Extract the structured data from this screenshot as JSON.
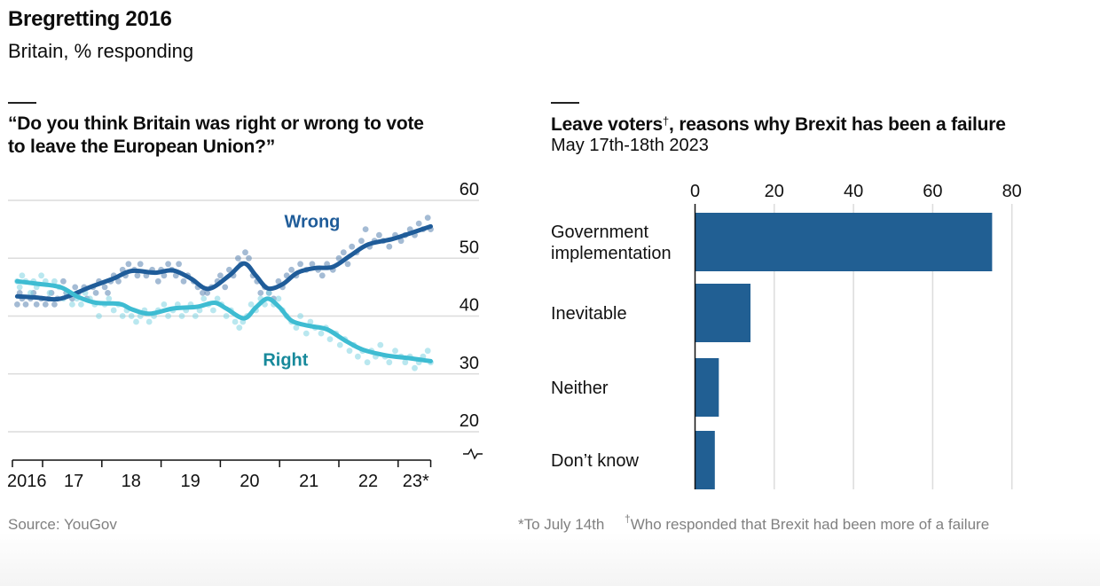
{
  "header": {
    "title": "Bregretting 2016",
    "subtitle": "Britain, % responding"
  },
  "colors": {
    "wrong_line": "#1f5c99",
    "wrong_dots": "#5a83b0",
    "wrong_label": "#1f5c99",
    "right_line": "#3ebcd2",
    "right_dots": "#7fd3e2",
    "right_label": "#17899b",
    "bar": "#215f93",
    "grid": "#dcdcdc",
    "axis": "#111111",
    "footnote": "#808080"
  },
  "footer": {
    "source": "Source: YouGov",
    "note_asterisk": "*To July 14th",
    "note_dagger_mark": "†",
    "note_dagger": "Who responded that Brexit had been more of a failure"
  },
  "chart_data": [
    {
      "type": "line",
      "title": "“Do you think Britain was right or wrong to vote to leave the European Union?”",
      "xlabel": "",
      "ylabel": "% responding",
      "x_ticks": [
        2016.5,
        2017,
        2018,
        2019,
        2020,
        2021,
        2022,
        2023,
        2023.55
      ],
      "x_tick_labels": [
        {
          "x": 2016.5,
          "label": "2016"
        },
        {
          "x": 2017,
          "label": "17"
        },
        {
          "x": 2018,
          "label": "18"
        },
        {
          "x": 2019,
          "label": "19"
        },
        {
          "x": 2020,
          "label": "20"
        },
        {
          "x": 2021,
          "label": "21"
        },
        {
          "x": 2022,
          "label": "22"
        },
        {
          "x": 2023,
          "label": "23*"
        }
      ],
      "xlim": [
        2016.5,
        2023.55
      ],
      "ylim": [
        20,
        60
      ],
      "y_ticks": [
        20,
        30,
        40,
        50,
        60
      ],
      "y_axis_side": "right",
      "y_axis_break": true,
      "grid": true,
      "series": [
        {
          "name": "Wrong",
          "label_position": {
            "x": 2021.55,
            "y": 55.3
          },
          "trend": [
            [
              2016.58,
              43.4
            ],
            [
              2016.9,
              43.2
            ],
            [
              2017.3,
              43.0
            ],
            [
              2017.8,
              45.0
            ],
            [
              2018.2,
              46.5
            ],
            [
              2018.5,
              47.8
            ],
            [
              2018.9,
              47.5
            ],
            [
              2019.2,
              47.9
            ],
            [
              2019.5,
              46.5
            ],
            [
              2019.8,
              44.7
            ],
            [
              2020.15,
              47.0
            ],
            [
              2020.4,
              49.1
            ],
            [
              2020.6,
              47.0
            ],
            [
              2020.8,
              44.8
            ],
            [
              2021.05,
              45.5
            ],
            [
              2021.3,
              47.5
            ],
            [
              2021.6,
              48.3
            ],
            [
              2021.9,
              48.5
            ],
            [
              2022.2,
              50.5
            ],
            [
              2022.5,
              52.4
            ],
            [
              2022.9,
              53.3
            ],
            [
              2023.2,
              54.3
            ],
            [
              2023.55,
              55.5
            ]
          ],
          "points": [
            [
              2016.58,
              42
            ],
            [
              2016.62,
              44
            ],
            [
              2016.66,
              43
            ],
            [
              2016.72,
              42
            ],
            [
              2016.8,
              43
            ],
            [
              2016.85,
              44
            ],
            [
              2016.9,
              42
            ],
            [
              2016.98,
              43
            ],
            [
              2017.05,
              42
            ],
            [
              2017.1,
              43
            ],
            [
              2017.15,
              44
            ],
            [
              2017.2,
              42
            ],
            [
              2017.25,
              43
            ],
            [
              2017.35,
              46
            ],
            [
              2017.4,
              44
            ],
            [
              2017.5,
              43
            ],
            [
              2017.55,
              45
            ],
            [
              2017.6,
              44
            ],
            [
              2017.7,
              45
            ],
            [
              2017.75,
              43
            ],
            [
              2017.85,
              45
            ],
            [
              2017.9,
              44
            ],
            [
              2017.95,
              46
            ],
            [
              2018.05,
              45
            ],
            [
              2018.1,
              44
            ],
            [
              2018.15,
              46
            ],
            [
              2018.2,
              47
            ],
            [
              2018.28,
              46
            ],
            [
              2018.35,
              48
            ],
            [
              2018.4,
              47
            ],
            [
              2018.45,
              49
            ],
            [
              2018.55,
              48
            ],
            [
              2018.6,
              47
            ],
            [
              2018.65,
              49
            ],
            [
              2018.75,
              47
            ],
            [
              2018.85,
              48
            ],
            [
              2018.95,
              46
            ],
            [
              2019.0,
              48
            ],
            [
              2019.05,
              47
            ],
            [
              2019.12,
              49
            ],
            [
              2019.18,
              48
            ],
            [
              2019.25,
              47
            ],
            [
              2019.3,
              49
            ],
            [
              2019.38,
              46
            ],
            [
              2019.45,
              47
            ],
            [
              2019.55,
              46
            ],
            [
              2019.62,
              45
            ],
            [
              2019.7,
              44
            ],
            [
              2019.78,
              44
            ],
            [
              2019.85,
              45
            ],
            [
              2019.95,
              46
            ],
            [
              2020.0,
              47
            ],
            [
              2020.08,
              45
            ],
            [
              2020.15,
              48
            ],
            [
              2020.22,
              47
            ],
            [
              2020.3,
              50
            ],
            [
              2020.35,
              49
            ],
            [
              2020.42,
              51
            ],
            [
              2020.48,
              50
            ],
            [
              2020.55,
              47
            ],
            [
              2020.62,
              46
            ],
            [
              2020.68,
              44
            ],
            [
              2020.75,
              45
            ],
            [
              2020.82,
              44
            ],
            [
              2020.9,
              43
            ],
            [
              2020.98,
              46
            ],
            [
              2021.05,
              45
            ],
            [
              2021.12,
              47
            ],
            [
              2021.2,
              48
            ],
            [
              2021.28,
              47
            ],
            [
              2021.35,
              49
            ],
            [
              2021.45,
              48
            ],
            [
              2021.55,
              49
            ],
            [
              2021.65,
              48
            ],
            [
              2021.72,
              47
            ],
            [
              2021.8,
              49
            ],
            [
              2021.9,
              48
            ],
            [
              2022.0,
              50
            ],
            [
              2022.08,
              51
            ],
            [
              2022.15,
              49
            ],
            [
              2022.22,
              52
            ],
            [
              2022.3,
              51
            ],
            [
              2022.38,
              53
            ],
            [
              2022.45,
              55
            ],
            [
              2022.52,
              52
            ],
            [
              2022.6,
              53
            ],
            [
              2022.68,
              54
            ],
            [
              2022.75,
              53
            ],
            [
              2022.85,
              52
            ],
            [
              2022.95,
              54
            ],
            [
              2023.05,
              53
            ],
            [
              2023.12,
              54
            ],
            [
              2023.2,
              55
            ],
            [
              2023.28,
              54
            ],
            [
              2023.35,
              56
            ],
            [
              2023.42,
              55
            ],
            [
              2023.5,
              57
            ],
            [
              2023.55,
              55
            ]
          ]
        },
        {
          "name": "Right",
          "label_position": {
            "x": 2021.1,
            "y": 31.4
          },
          "trend": [
            [
              2016.58,
              46.0
            ],
            [
              2016.9,
              45.6
            ],
            [
              2017.3,
              45.0
            ],
            [
              2017.6,
              43.3
            ],
            [
              2017.9,
              42.3
            ],
            [
              2018.3,
              42.1
            ],
            [
              2018.5,
              41.2
            ],
            [
              2018.8,
              40.4
            ],
            [
              2019.2,
              41.3
            ],
            [
              2019.6,
              41.6
            ],
            [
              2019.9,
              42.3
            ],
            [
              2020.1,
              41.3
            ],
            [
              2020.4,
              39.6
            ],
            [
              2020.6,
              41.5
            ],
            [
              2020.8,
              43.0
            ],
            [
              2021.0,
              41.5
            ],
            [
              2021.2,
              39.2
            ],
            [
              2021.5,
              38.3
            ],
            [
              2021.8,
              37.7
            ],
            [
              2022.1,
              35.8
            ],
            [
              2022.4,
              34.2
            ],
            [
              2022.8,
              33.2
            ],
            [
              2023.2,
              32.7
            ],
            [
              2023.55,
              32.2
            ]
          ],
          "points": [
            [
              2016.58,
              46
            ],
            [
              2016.62,
              45
            ],
            [
              2016.66,
              47
            ],
            [
              2016.72,
              46
            ],
            [
              2016.8,
              44
            ],
            [
              2016.85,
              46
            ],
            [
              2016.9,
              45
            ],
            [
              2016.98,
              47
            ],
            [
              2017.05,
              46
            ],
            [
              2017.12,
              44
            ],
            [
              2017.2,
              46
            ],
            [
              2017.28,
              45
            ],
            [
              2017.35,
              43
            ],
            [
              2017.42,
              44
            ],
            [
              2017.5,
              42
            ],
            [
              2017.58,
              43
            ],
            [
              2017.65,
              42
            ],
            [
              2017.72,
              44
            ],
            [
              2017.8,
              43
            ],
            [
              2017.88,
              42
            ],
            [
              2017.95,
              40
            ],
            [
              2018.05,
              42
            ],
            [
              2018.12,
              43
            ],
            [
              2018.2,
              41
            ],
            [
              2018.28,
              42
            ],
            [
              2018.35,
              40
            ],
            [
              2018.42,
              41
            ],
            [
              2018.5,
              40
            ],
            [
              2018.58,
              39
            ],
            [
              2018.65,
              40
            ],
            [
              2018.72,
              41
            ],
            [
              2018.8,
              39
            ],
            [
              2018.88,
              40
            ],
            [
              2018.95,
              41
            ],
            [
              2019.05,
              42
            ],
            [
              2019.12,
              40
            ],
            [
              2019.2,
              41
            ],
            [
              2019.28,
              42
            ],
            [
              2019.35,
              40
            ],
            [
              2019.42,
              41
            ],
            [
              2019.5,
              42
            ],
            [
              2019.58,
              40
            ],
            [
              2019.65,
              41
            ],
            [
              2019.72,
              43
            ],
            [
              2019.8,
              42
            ],
            [
              2019.88,
              41
            ],
            [
              2019.95,
              43
            ],
            [
              2020.02,
              42
            ],
            [
              2020.1,
              40
            ],
            [
              2020.18,
              41
            ],
            [
              2020.25,
              39
            ],
            [
              2020.32,
              38
            ],
            [
              2020.38,
              39
            ],
            [
              2020.45,
              40
            ],
            [
              2020.52,
              42
            ],
            [
              2020.6,
              41
            ],
            [
              2020.68,
              43
            ],
            [
              2020.75,
              42
            ],
            [
              2020.82,
              44
            ],
            [
              2020.9,
              42
            ],
            [
              2020.98,
              43
            ],
            [
              2021.05,
              41
            ],
            [
              2021.12,
              40
            ],
            [
              2021.2,
              39
            ],
            [
              2021.28,
              38
            ],
            [
              2021.35,
              40
            ],
            [
              2021.45,
              37
            ],
            [
              2021.52,
              39
            ],
            [
              2021.6,
              38
            ],
            [
              2021.7,
              37
            ],
            [
              2021.78,
              38
            ],
            [
              2021.85,
              36
            ],
            [
              2021.95,
              37
            ],
            [
              2022.02,
              35
            ],
            [
              2022.1,
              36
            ],
            [
              2022.18,
              34
            ],
            [
              2022.25,
              35
            ],
            [
              2022.32,
              33
            ],
            [
              2022.4,
              34
            ],
            [
              2022.48,
              32
            ],
            [
              2022.55,
              34
            ],
            [
              2022.62,
              33
            ],
            [
              2022.7,
              35
            ],
            [
              2022.78,
              33
            ],
            [
              2022.85,
              32
            ],
            [
              2022.95,
              34
            ],
            [
              2023.05,
              33
            ],
            [
              2023.12,
              32
            ],
            [
              2023.2,
              33
            ],
            [
              2023.28,
              31
            ],
            [
              2023.35,
              32
            ],
            [
              2023.42,
              33
            ],
            [
              2023.5,
              34
            ],
            [
              2023.55,
              32
            ]
          ]
        }
      ]
    },
    {
      "type": "bar",
      "orientation": "horizontal",
      "title": "Leave voters†, reasons why Brexit has been a failure",
      "title_main": "Leave voters",
      "title_mark": "†",
      "title_rest": ", reasons why Brexit has been a failure",
      "subtitle": "May 17th-18th 2023",
      "categories": [
        "Government implementation",
        "Inevitable",
        "Neither",
        "Don’t know"
      ],
      "category_lines": [
        [
          "Government",
          "implementation"
        ],
        [
          "Inevitable"
        ],
        [
          "Neither"
        ],
        [
          "Don’t know"
        ]
      ],
      "values": [
        75,
        14,
        6,
        5
      ],
      "xlim": [
        0,
        80
      ],
      "x_ticks": [
        0,
        20,
        40,
        60,
        80
      ],
      "x_axis_side": "top",
      "grid": true,
      "xlabel": "",
      "ylabel": ""
    }
  ]
}
